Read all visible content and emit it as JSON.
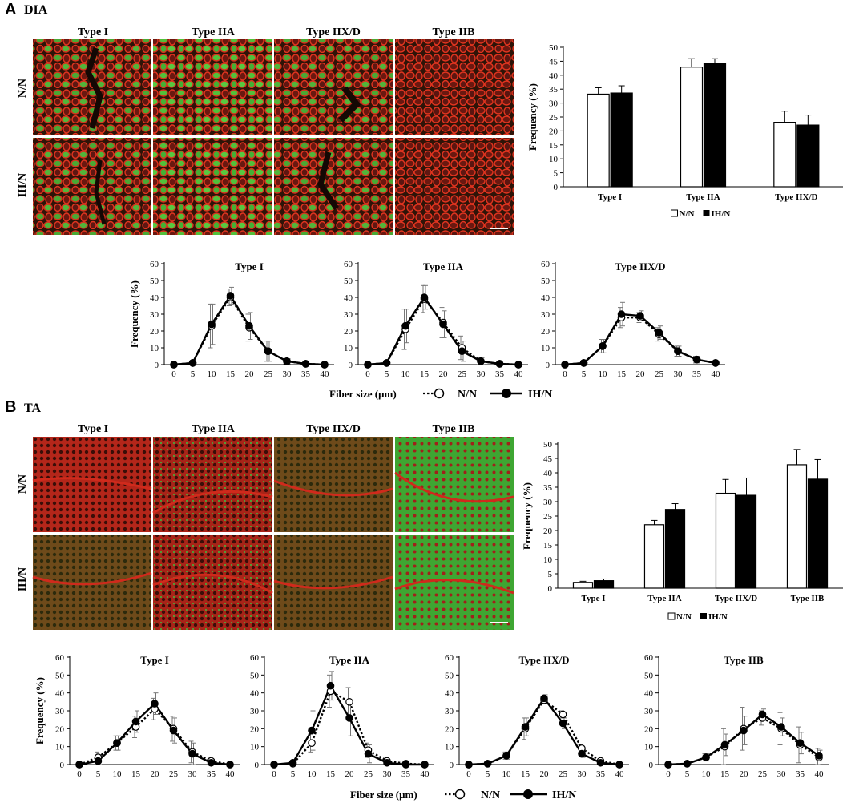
{
  "panels": [
    {
      "letter": "A",
      "name": "DIA"
    },
    {
      "letter": "B",
      "name": "TA"
    }
  ],
  "micrographs": {
    "column_labels_A": [
      "Type I",
      "Type IIA",
      "Type IIX/D",
      "Type IIB"
    ],
    "column_labels_B": [
      "Type I",
      "Type IIA",
      "Type IIX/D",
      "Type IIB"
    ],
    "row_labels": [
      "N/N",
      "IH/N"
    ],
    "colors": {
      "red": "#c8281e",
      "green": "#48b838",
      "dark": "#2a1a14"
    }
  },
  "legend": {
    "nn": "N/N",
    "ih": "IH/N"
  },
  "xlabel_common": "Fiber size (μm)",
  "chart_data": [
    {
      "panel": "A",
      "type": "bar",
      "categories": [
        "Type I",
        "Type IIA",
        "Type IIX/D"
      ],
      "series": [
        {
          "name": "N/N",
          "values": [
            33.2,
            42.9,
            23.1
          ],
          "errors": [
            2.3,
            3.0,
            4.0
          ]
        },
        {
          "name": "IH/N",
          "values": [
            33.6,
            44.3,
            22.1
          ],
          "errors": [
            2.6,
            1.6,
            3.6
          ]
        }
      ],
      "ylabel": "Frequency (%)",
      "ylim": [
        0,
        50
      ],
      "yticks": [
        0,
        5,
        10,
        15,
        20,
        25,
        30,
        35,
        40,
        45,
        50
      ]
    },
    {
      "panel": "A",
      "type": "line",
      "title": "Type I",
      "x": [
        0,
        5,
        10,
        15,
        20,
        25,
        30,
        35,
        40
      ],
      "series": [
        {
          "name": "N/N",
          "values": [
            0,
            1,
            23,
            40,
            22,
            8,
            2,
            0.5,
            0
          ],
          "errors": [
            0,
            0.5,
            13,
            5,
            8,
            6,
            1.5,
            0.5,
            0
          ]
        },
        {
          "name": "IH/N",
          "values": [
            0,
            1,
            24,
            41,
            23,
            8,
            2,
            0.5,
            0
          ],
          "errors": [
            0,
            0.5,
            12,
            5,
            8,
            6,
            1.5,
            0.5,
            0
          ]
        }
      ],
      "ylabel": "Frequency (%)",
      "ylim": [
        0,
        60
      ],
      "yticks": [
        0,
        10,
        20,
        30,
        40,
        50,
        60
      ]
    },
    {
      "panel": "A",
      "type": "line",
      "title": "Type IIA",
      "x": [
        0,
        5,
        10,
        15,
        20,
        25,
        30,
        35,
        40
      ],
      "series": [
        {
          "name": "N/N",
          "values": [
            0,
            1,
            21,
            39,
            25,
            10,
            2,
            0.5,
            0
          ],
          "errors": [
            0,
            0.5,
            12,
            8,
            9,
            7,
            2,
            0.5,
            0
          ]
        },
        {
          "name": "IH/N",
          "values": [
            0,
            1,
            23,
            40,
            24,
            8,
            2,
            0.5,
            0
          ],
          "errors": [
            0,
            0.5,
            10,
            7,
            8,
            6,
            2,
            0.5,
            0
          ]
        }
      ],
      "ylabel": "",
      "ylim": [
        0,
        60
      ],
      "yticks": [
        0,
        10,
        20,
        30,
        40,
        50,
        60
      ]
    },
    {
      "panel": "A",
      "type": "line",
      "title": "Type IIX/D",
      "x": [
        0,
        5,
        10,
        15,
        20,
        25,
        30,
        35,
        40
      ],
      "series": [
        {
          "name": "N/N",
          "values": [
            0,
            1,
            11,
            28,
            28,
            18,
            8,
            3,
            1
          ],
          "errors": [
            0,
            0.5,
            4,
            6,
            3,
            4,
            3,
            2,
            1
          ]
        },
        {
          "name": "IH/N",
          "values": [
            0,
            1,
            11,
            30,
            29,
            19,
            8,
            3,
            1
          ],
          "errors": [
            0,
            0.5,
            4,
            7,
            3,
            4,
            3,
            2,
            1
          ]
        }
      ],
      "ylabel": "",
      "ylim": [
        0,
        60
      ],
      "yticks": [
        0,
        10,
        20,
        30,
        40,
        50,
        60
      ]
    },
    {
      "panel": "B",
      "type": "bar",
      "categories": [
        "Type I",
        "Type IIA",
        "Type IIX/D",
        "Type IIB"
      ],
      "series": [
        {
          "name": "N/N",
          "values": [
            2.0,
            22.0,
            32.9,
            42.8
          ],
          "errors": [
            0.4,
            1.5,
            4.8,
            5.3
          ]
        },
        {
          "name": "IH/N",
          "values": [
            2.6,
            27.3,
            32.2,
            37.8
          ],
          "errors": [
            0.6,
            2.0,
            6.0,
            6.8
          ]
        }
      ],
      "ylabel": "Frequency (%)",
      "ylim": [
        0,
        50
      ],
      "yticks": [
        0,
        5,
        10,
        15,
        20,
        25,
        30,
        35,
        40,
        45,
        50
      ]
    },
    {
      "panel": "B",
      "type": "line",
      "title": "Type I",
      "x": [
        0,
        5,
        10,
        15,
        20,
        25,
        30,
        35,
        40
      ],
      "series": [
        {
          "name": "N/N",
          "values": [
            0,
            4,
            12,
            21,
            31,
            20,
            7,
            2,
            0
          ],
          "errors": [
            0,
            3,
            4,
            6,
            6,
            7,
            6,
            2,
            0
          ]
        },
        {
          "name": "IH/N",
          "values": [
            0,
            2,
            12,
            24,
            34,
            19,
            6,
            1,
            0
          ],
          "errors": [
            0,
            2,
            4,
            6,
            6,
            7,
            6,
            2,
            0
          ]
        }
      ],
      "ylabel": "Frequency (%)",
      "ylim": [
        0,
        60
      ],
      "yticks": [
        0,
        10,
        20,
        30,
        40,
        50,
        60
      ]
    },
    {
      "panel": "B",
      "type": "line",
      "title": "Type IIA",
      "x": [
        0,
        5,
        10,
        15,
        20,
        25,
        30,
        35,
        40
      ],
      "series": [
        {
          "name": "N/N",
          "values": [
            0,
            0.5,
            12,
            41,
            35,
            8,
            2,
            0.5,
            0
          ],
          "errors": [
            0,
            0.5,
            5,
            9,
            8,
            4,
            2,
            0.5,
            0
          ]
        },
        {
          "name": "IH/N",
          "values": [
            0,
            1,
            19,
            44,
            26,
            6,
            1,
            0,
            0
          ],
          "errors": [
            0,
            0.5,
            11,
            8,
            10,
            5,
            1,
            0,
            0
          ]
        }
      ],
      "ylabel": "",
      "ylim": [
        0,
        60
      ],
      "yticks": [
        0,
        10,
        20,
        30,
        40,
        50,
        60
      ]
    },
    {
      "panel": "B",
      "type": "line",
      "title": "Type IIX/D",
      "x": [
        0,
        5,
        10,
        15,
        20,
        25,
        30,
        35,
        40
      ],
      "series": [
        {
          "name": "N/N",
          "values": [
            0,
            0.5,
            5,
            20,
            36,
            28,
            9,
            2,
            0
          ],
          "errors": [
            0,
            0.5,
            2,
            6,
            2,
            2,
            2,
            1,
            0
          ]
        },
        {
          "name": "IH/N",
          "values": [
            0,
            0.5,
            5,
            21,
            37,
            23,
            6,
            1,
            0
          ],
          "errors": [
            0,
            0.5,
            2,
            5,
            2,
            3,
            2,
            1,
            0
          ]
        }
      ],
      "ylabel": "",
      "ylim": [
        0,
        60
      ],
      "yticks": [
        0,
        10,
        20,
        30,
        40,
        50,
        60
      ]
    },
    {
      "panel": "B",
      "type": "line",
      "title": "Type IIB",
      "x": [
        0,
        5,
        10,
        15,
        20,
        25,
        30,
        35,
        40
      ],
      "series": [
        {
          "name": "N/N",
          "values": [
            0,
            0.5,
            4,
            10,
            20,
            26,
            20,
            11,
            4
          ],
          "errors": [
            0,
            0.5,
            2,
            10,
            12,
            4,
            9,
            10,
            5
          ]
        },
        {
          "name": "IH/N",
          "values": [
            0,
            0.5,
            4,
            11,
            19,
            28,
            21,
            12,
            5
          ],
          "errors": [
            0,
            0.5,
            2,
            6,
            8,
            3,
            5,
            6,
            3
          ]
        }
      ],
      "ylabel": "",
      "ylim": [
        0,
        60
      ],
      "yticks": [
        0,
        10,
        20,
        30,
        40,
        50,
        60
      ]
    }
  ]
}
